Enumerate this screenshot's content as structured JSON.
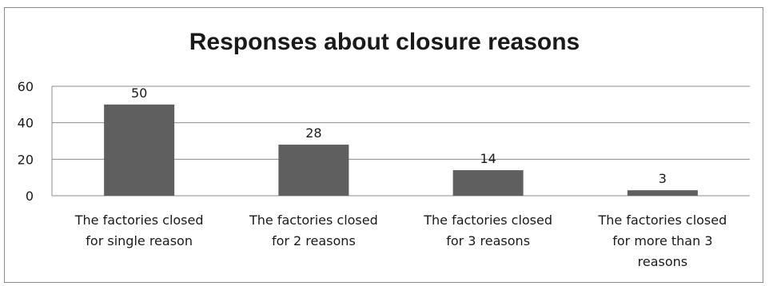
{
  "chart_data": {
    "type": "bar",
    "title": "Responses about closure reasons",
    "xlabel": "",
    "ylabel": "",
    "categories": [
      [
        "The factories closed",
        "for single reason"
      ],
      [
        "The factories closed",
        "for 2 reasons"
      ],
      [
        "The factories closed",
        "for  3 reasons"
      ],
      [
        "The factories closed",
        "for  more than 3",
        "reasons"
      ]
    ],
    "values": [
      50,
      28,
      14,
      3
    ],
    "data_labels": [
      "50",
      "28",
      "14",
      "3"
    ],
    "ylim": [
      0,
      60
    ],
    "yticks": [
      0,
      20,
      40,
      60
    ],
    "grid": true,
    "legend": "none",
    "colors": {
      "bar": "#5f5f5f",
      "grid": "#8c8c8c",
      "axis": "#8c8c8c"
    }
  }
}
